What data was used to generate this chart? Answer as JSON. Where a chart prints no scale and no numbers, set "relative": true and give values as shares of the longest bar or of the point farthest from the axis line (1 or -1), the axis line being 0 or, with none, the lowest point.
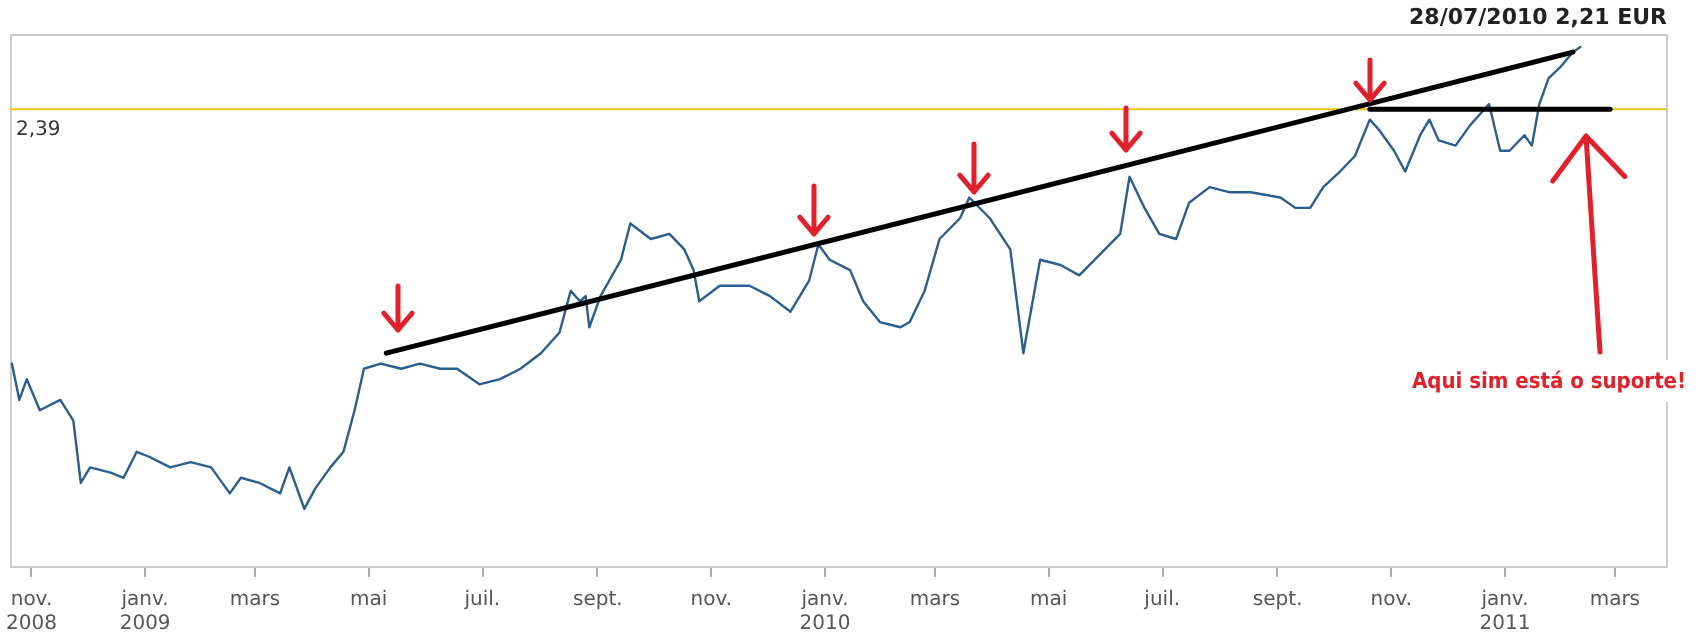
{
  "chart_data": {
    "type": "line",
    "relative": true,
    "title": "28/07/2010 2,21 EUR",
    "annotations": [
      "Aqui sim está o suporte!",
      "2,39"
    ],
    "xlim": [
      "2008-10-21",
      "2011-03-29"
    ],
    "xticks": [
      {
        "value": "2008-11-01",
        "label": "nov. 2008"
      },
      {
        "value": "2009-01-01",
        "label": "janv. 2009"
      },
      {
        "value": "2009-03-01",
        "label": "mars"
      },
      {
        "value": "2009-05-01",
        "label": "mai"
      },
      {
        "value": "2009-07-01",
        "label": "juil."
      },
      {
        "value": "2009-09-01",
        "label": "sept."
      },
      {
        "value": "2009-11-01",
        "label": "nov."
      },
      {
        "value": "2010-01-01",
        "label": "janv. 2010"
      },
      {
        "value": "2010-03-01",
        "label": "mars"
      },
      {
        "value": "2010-05-01",
        "label": "mai"
      },
      {
        "value": "2010-07-01",
        "label": "juil."
      },
      {
        "value": "2010-09-01",
        "label": "sept."
      },
      {
        "value": "2010-11-01",
        "label": "nov."
      },
      {
        "value": "2011-01-01",
        "label": "janv. 2011"
      },
      {
        "value": "2011-03-01",
        "label": "mars"
      }
    ],
    "ref_lines": [
      {
        "axis": "y",
        "value": 0.88,
        "color": "#f2c500"
      }
    ],
    "series": [
      {
        "type": "line",
        "color": "#2b5d8f",
        "x": [
          "2008-10-22",
          "2008-10-26",
          "2008-10-30",
          "2008-11-06",
          "2008-11-17",
          "2008-11-24",
          "2008-11-28",
          "2008-12-03",
          "2008-12-14",
          "2008-12-21",
          "2008-12-28",
          "2009-01-04",
          "2009-01-15",
          "2009-01-26",
          "2009-02-06",
          "2009-02-16",
          "2009-02-22",
          "2009-03-04",
          "2009-03-15",
          "2009-03-20",
          "2009-03-28",
          "2009-04-03",
          "2009-04-11",
          "2009-04-18",
          "2009-04-24",
          "2009-04-29",
          "2009-05-08",
          "2009-05-19",
          "2009-05-29",
          "2009-06-09",
          "2009-06-18",
          "2009-06-30",
          "2009-07-11",
          "2009-07-22",
          "2009-08-02",
          "2009-08-12",
          "2009-08-18",
          "2009-08-23",
          "2009-08-26",
          "2009-08-28",
          "2009-09-03",
          "2009-09-14",
          "2009-09-19",
          "2009-09-30",
          "2009-10-10",
          "2009-10-18",
          "2009-10-23",
          "2009-10-26",
          "2009-11-06",
          "2009-11-22",
          "2009-12-03",
          "2009-12-14",
          "2009-12-24",
          "2009-12-29",
          "2010-01-04",
          "2010-01-15",
          "2010-01-22",
          "2010-01-31",
          "2010-02-11",
          "2010-02-16",
          "2010-02-24",
          "2010-03-04",
          "2010-03-15",
          "2010-03-20",
          "2010-03-31",
          "2010-04-11",
          "2010-04-18",
          "2010-04-27",
          "2010-05-08",
          "2010-05-18",
          "2010-05-29",
          "2010-06-09",
          "2010-06-14",
          "2010-06-22",
          "2010-06-30",
          "2010-07-09",
          "2010-07-16",
          "2010-07-27",
          "2010-08-07",
          "2010-08-18",
          "2010-09-03",
          "2010-09-11",
          "2010-09-19",
          "2010-09-26",
          "2010-10-05",
          "2010-10-13",
          "2010-10-21",
          "2010-10-26",
          "2010-11-03",
          "2010-11-09",
          "2010-11-17",
          "2010-11-22",
          "2010-11-27",
          "2010-12-06",
          "2010-12-14",
          "2010-12-19",
          "2010-12-24",
          "2010-12-30",
          "2011-01-04",
          "2011-01-12",
          "2011-01-16",
          "2011-01-20",
          "2011-01-25",
          "2011-01-31",
          "2011-02-07",
          "2011-02-11"
        ],
        "values": [
          0.39,
          0.32,
          0.36,
          0.3,
          0.32,
          0.28,
          0.16,
          0.19,
          0.18,
          0.17,
          0.22,
          0.21,
          0.19,
          0.2,
          0.19,
          0.14,
          0.17,
          0.16,
          0.14,
          0.19,
          0.11,
          0.15,
          0.19,
          0.22,
          0.3,
          0.38,
          0.39,
          0.38,
          0.39,
          0.38,
          0.38,
          0.35,
          0.36,
          0.38,
          0.41,
          0.45,
          0.53,
          0.51,
          0.52,
          0.46,
          0.52,
          0.59,
          0.66,
          0.63,
          0.64,
          0.61,
          0.57,
          0.51,
          0.54,
          0.54,
          0.52,
          0.49,
          0.55,
          0.62,
          0.59,
          0.57,
          0.51,
          0.47,
          0.46,
          0.47,
          0.53,
          0.63,
          0.67,
          0.71,
          0.67,
          0.61,
          0.41,
          0.59,
          0.58,
          0.56,
          0.6,
          0.64,
          0.75,
          0.69,
          0.64,
          0.63,
          0.7,
          0.73,
          0.72,
          0.72,
          0.71,
          0.69,
          0.69,
          0.73,
          0.76,
          0.79,
          0.86,
          0.84,
          0.8,
          0.76,
          0.83,
          0.86,
          0.82,
          0.81,
          0.85,
          0.87,
          0.89,
          0.8,
          0.8,
          0.83,
          0.81,
          0.89,
          0.94,
          0.96,
          0.99,
          1
        ]
      },
      {
        "type": "line",
        "color": "#000000",
        "x": [
          "2009-05-11",
          "2011-02-07"
        ],
        "values": [
          0.41,
          0.99
        ]
      },
      {
        "type": "line",
        "color": "#000000",
        "x": [
          "2010-10-21",
          "2011-02-27"
        ],
        "values": [
          0.88,
          0.88
        ]
      }
    ]
  }
}
